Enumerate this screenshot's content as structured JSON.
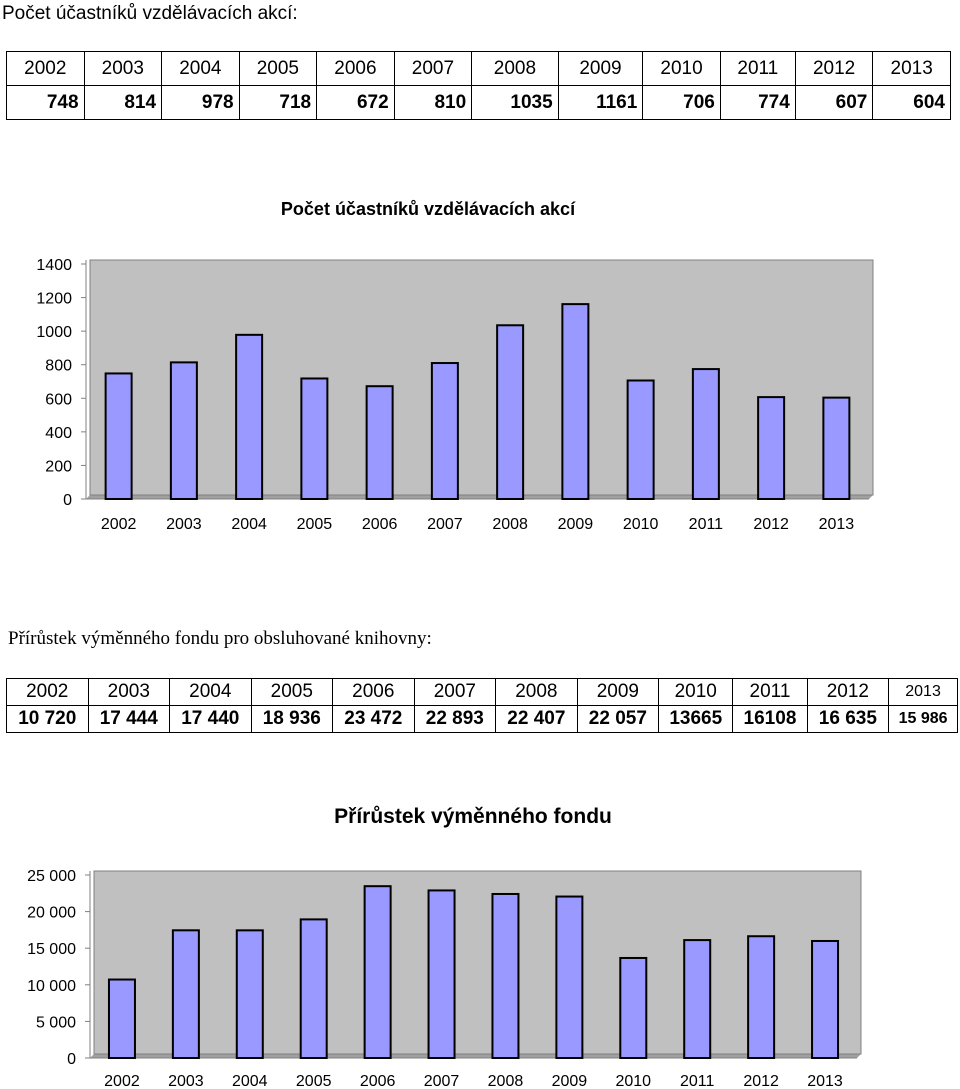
{
  "section1": {
    "heading": "Počet účastníků vzdělávacích akcí:",
    "table": {
      "years": [
        "2002",
        "2003",
        "2004",
        "2005",
        "2006",
        "2007",
        "2008",
        "2009",
        "2010",
        "2011",
        "2012",
        "2013"
      ],
      "values": [
        "748",
        "814",
        "978",
        "718",
        "672",
        "810",
        "1035",
        "1161",
        "706",
        "774",
        "607",
        "604"
      ]
    }
  },
  "section2": {
    "heading": "Přírůstek výměnného fondu pro obsluhované knihovny:",
    "table": {
      "years": [
        "2002",
        "2003",
        "2004",
        "2005",
        "2006",
        "2007",
        "2008",
        "2009",
        "2010",
        "2011",
        "2012",
        "2013"
      ],
      "values": [
        "10 720",
        "17 444",
        "17 440",
        "18 936",
        "23 472",
        "22 893",
        "22 407",
        "22 057",
        "13665",
        "16108",
        "16 635",
        "15 986"
      ]
    }
  },
  "colors": {
    "bar": "#9999ff",
    "plot_bg": "#c0c0c0",
    "outline": "#000000"
  },
  "chart_data": [
    {
      "type": "bar",
      "title": "Počet účastníků vzdělávacích akcí",
      "categories": [
        "2002",
        "2003",
        "2004",
        "2005",
        "2006",
        "2007",
        "2008",
        "2009",
        "2010",
        "2011",
        "2012",
        "2013"
      ],
      "values": [
        748,
        814,
        978,
        718,
        672,
        810,
        1035,
        1161,
        706,
        774,
        607,
        604
      ],
      "ylim": [
        0,
        1400
      ],
      "yticks": [
        0,
        200,
        400,
        600,
        800,
        1000,
        1200,
        1400
      ],
      "ytick_labels": [
        "0",
        "200",
        "400",
        "600",
        "800",
        "1000",
        "1200",
        "1400"
      ],
      "grid": false,
      "legend": false
    },
    {
      "type": "bar",
      "title": "Přírůstek výměnného fondu",
      "categories": [
        "2002",
        "2003",
        "2004",
        "2005",
        "2006",
        "2007",
        "2008",
        "2009",
        "2010",
        "2011",
        "2012",
        "2013"
      ],
      "values": [
        10720,
        17444,
        17440,
        18936,
        23472,
        22893,
        22407,
        22057,
        13665,
        16108,
        16635,
        15986
      ],
      "ylim": [
        0,
        25000
      ],
      "yticks": [
        0,
        5000,
        10000,
        15000,
        20000,
        25000
      ],
      "ytick_labels": [
        "0",
        "5 000",
        "10 000",
        "15 000",
        "20 000",
        "25 000"
      ],
      "grid": false,
      "legend": false
    }
  ]
}
